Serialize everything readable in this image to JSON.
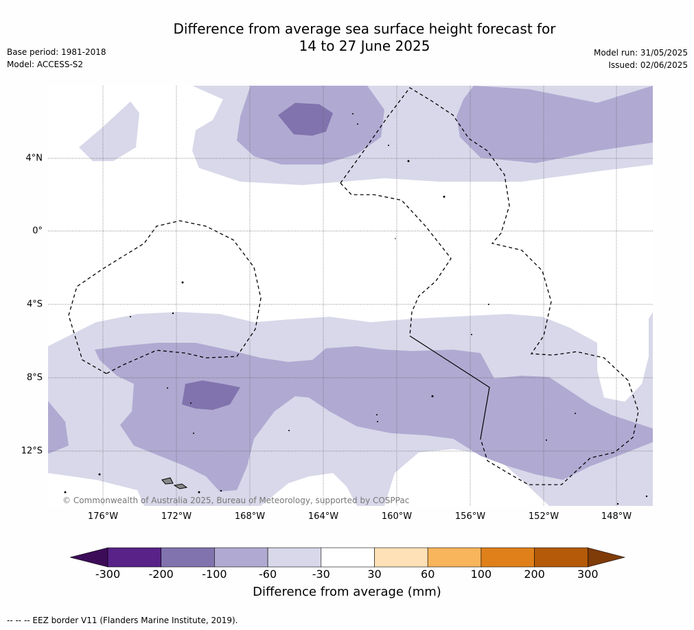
{
  "header": {
    "title_line1": "Difference from average sea surface height forecast for",
    "title_line2": "14 to 27 June 2025",
    "base_period": "Base period: 1981-2018",
    "model": "Model: ACCESS-S2",
    "model_run": "Model run: 31/05/2025",
    "issued": "Issued: 02/06/2025"
  },
  "map": {
    "lat_labels": [
      "4°N",
      "0°",
      "4°S",
      "8°S",
      "12°S"
    ],
    "lon_labels": [
      "176°W",
      "172°W",
      "168°W",
      "164°W",
      "160°W",
      "156°W",
      "152°W",
      "148°W"
    ],
    "copyright": "© Commonwealth of Australia 2025, Bureau of Meteorology, supported by COSPPac",
    "fill_colors": {
      "light": "#d8d8ea",
      "medium": "#b0aad2",
      "dark": "#8173ad"
    },
    "border_style": "dashed EEZ border"
  },
  "colorbar": {
    "ticks": [
      "-300",
      "-200",
      "-100",
      "-60",
      "-30",
      "30",
      "60",
      "100",
      "200",
      "300"
    ],
    "colors": [
      "#3d0c59",
      "#582288",
      "#8173ad",
      "#b0aad2",
      "#d8d8ea",
      "#ffffff",
      "#fee1b6",
      "#f9b55b",
      "#e0801a",
      "#b45a08",
      "#7f3b08"
    ],
    "label": "Difference from average (mm)"
  },
  "footer": {
    "note": "--  --  -- EEZ border V11 (Flanders Marine Institute, 2019)."
  }
}
